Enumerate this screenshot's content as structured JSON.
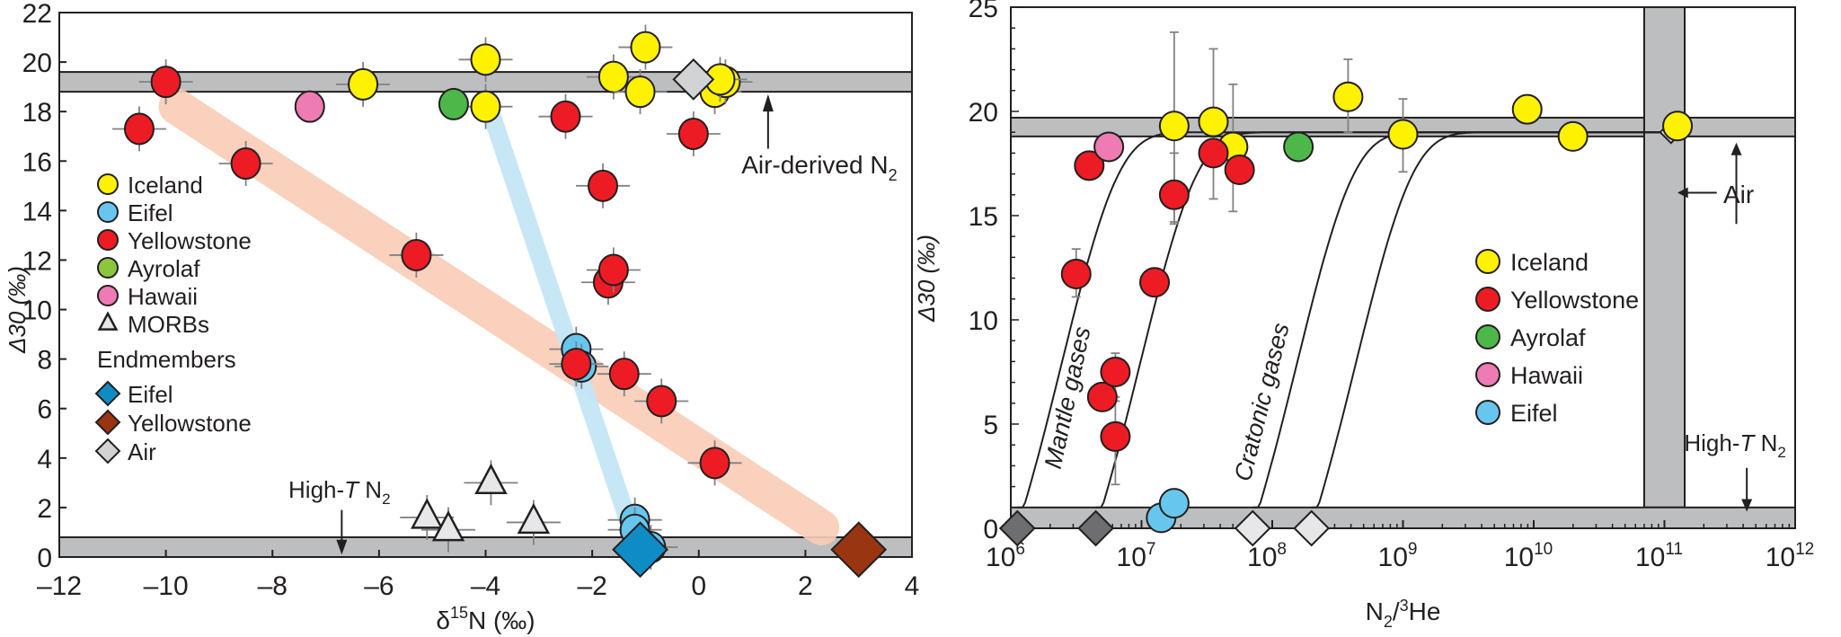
{
  "chart_data": [
    {
      "type": "scatter",
      "xlabel": "δ15N (‰)",
      "xlabel_main": "δ",
      "xlabel_sup": "15",
      "xlabel_tail": "N (‰)",
      "ylabel": "Δ30 (‰)",
      "xlim": [
        -12,
        4
      ],
      "ylim": [
        0,
        22
      ],
      "xticks": [
        -12,
        -10,
        -8,
        -6,
        -4,
        -2,
        0,
        2,
        4
      ],
      "xtick_labels": [
        "–12",
        "–10",
        "–8",
        "–6",
        "–4",
        "–2",
        "0",
        "2",
        "4"
      ],
      "yticks": [
        0,
        2,
        4,
        6,
        8,
        10,
        12,
        14,
        16,
        18,
        20,
        22
      ],
      "bands": {
        "air": [
          18.8,
          19.6
        ],
        "hight": [
          0,
          0.8
        ]
      },
      "annotations": {
        "air": "Air-derived N",
        "hight_pre": "High-",
        "hight_T": "T",
        "hight_post": " N",
        "sub2": "2"
      },
      "legend": {
        "items": [
          "Iceland",
          "Eifel",
          "Yellowstone",
          "Ayrolaf",
          "Hawaii",
          "MORBs"
        ],
        "endmembers_title": "Endmembers",
        "endmembers": [
          "Eifel",
          "Yellowstone",
          "Air"
        ]
      },
      "series": [
        {
          "name": "Iceland",
          "color": "#fff200",
          "points": [
            [
              -6.3,
              19.1
            ],
            [
              -4,
              20.1
            ],
            [
              -4,
              18.2
            ],
            [
              -1.6,
              19.4
            ],
            [
              -1,
              20.6
            ],
            [
              -1.1,
              18.8
            ],
            [
              0.3,
              18.8
            ],
            [
              0.5,
              19.2
            ],
            [
              0.4,
              19.3
            ]
          ]
        },
        {
          "name": "Eifel",
          "color": "#67c6ee",
          "points": [
            [
              -2.3,
              8.4
            ],
            [
              -2.2,
              7.7
            ],
            [
              -1.2,
              1.5
            ],
            [
              -1.2,
              1.1
            ],
            [
              -0.9,
              0.4
            ]
          ]
        },
        {
          "name": "Yellowstone",
          "color": "#ed1c24",
          "points": [
            [
              -10,
              19.2
            ],
            [
              -10.5,
              17.3
            ],
            [
              -8.5,
              15.9
            ],
            [
              -5.3,
              12.2
            ],
            [
              -2.5,
              17.8
            ],
            [
              -1.8,
              15
            ],
            [
              -1.7,
              11.1
            ],
            [
              -1.6,
              11.6
            ],
            [
              -2.3,
              7.8
            ],
            [
              -1.4,
              7.4
            ],
            [
              -0.7,
              6.3
            ],
            [
              0.3,
              3.8
            ],
            [
              -0.1,
              17.1
            ]
          ]
        },
        {
          "name": "Ayrolaf",
          "color": "#4db849",
          "points": [
            [
              -4.6,
              18.3
            ]
          ]
        },
        {
          "name": "Hawaii",
          "color": "#ee7bb3",
          "points": [
            [
              -7.3,
              18.2
            ]
          ]
        },
        {
          "name": "MORBs",
          "color": "#e6e7e8",
          "points": [
            [
              -5.1,
              1.6
            ],
            [
              -4.7,
              1.1
            ],
            [
              -3.9,
              3
            ],
            [
              -3.1,
              1.4
            ]
          ]
        }
      ],
      "endmembers": [
        {
          "name": "Eifel",
          "color": "#0f8cc4",
          "x": -1.1,
          "y": 0.3
        },
        {
          "name": "Yellowstone",
          "color": "#9a3511",
          "x": 3,
          "y": 0.3
        },
        {
          "name": "Air",
          "color": "#d1d3d4",
          "x": -0.1,
          "y": 19.3
        }
      ]
    },
    {
      "type": "scatter",
      "xlabel": "N2/3He",
      "xscale": "log",
      "ylabel": "Δ30 (‰)",
      "xlim": [
        6,
        12
      ],
      "ylim": [
        0,
        25
      ],
      "xticks": [
        6,
        7,
        8,
        9,
        10,
        11,
        12
      ],
      "xtick_base": "10",
      "xtick_exps": [
        "6",
        "7",
        "8",
        "9",
        "10",
        "11",
        "12"
      ],
      "yticks": [
        0,
        5,
        10,
        15,
        20,
        25
      ],
      "bands": {
        "air_h": [
          18.8,
          19.7
        ],
        "air_v": [
          10.9,
          11.1
        ],
        "hight": [
          0,
          1
        ]
      },
      "annotations": {
        "air": "Air",
        "hight_pre": "High-",
        "hight_T": "T",
        "hight_post": " N",
        "sub2": "2",
        "mantle": "Mantle gases",
        "cratonic": "Cratonic gases"
      },
      "legend": {
        "items": [
          "Iceland",
          "Yellowstone",
          "Ayrolaf",
          "Hawaii",
          "Eifel"
        ]
      },
      "series": [
        {
          "name": "Iceland",
          "color": "#fff200",
          "points": [
            [
              7.25,
              19.3
            ],
            [
              7.55,
              19.5
            ],
            [
              7.7,
              18.3
            ],
            [
              8.58,
              20.7
            ],
            [
              9,
              18.9
            ],
            [
              9.95,
              20.1
            ],
            [
              10.3,
              18.8
            ],
            [
              11.1,
              19.3
            ]
          ]
        },
        {
          "name": "Yellowstone",
          "color": "#ed1c24",
          "points": [
            [
              6.5,
              12.2
            ],
            [
              6.6,
              17.4
            ],
            [
              7.1,
              11.8
            ],
            [
              7.25,
              16
            ],
            [
              7.55,
              18
            ],
            [
              7.75,
              17.2
            ],
            [
              6.7,
              6.3
            ],
            [
              6.8,
              7.5
            ],
            [
              6.8,
              4.4
            ]
          ]
        },
        {
          "name": "Ayrolaf",
          "color": "#4db849",
          "points": [
            [
              8.2,
              18.3
            ]
          ]
        },
        {
          "name": "Hawaii",
          "color": "#ee7bb3",
          "points": [
            [
              6.75,
              18.3
            ]
          ]
        },
        {
          "name": "Eifel",
          "color": "#67c6ee",
          "points": [
            [
              7.15,
              0.5
            ],
            [
              7.25,
              1.2
            ]
          ]
        }
      ],
      "endmembers": [
        [
          6.05,
          0
        ],
        [
          6.65,
          0
        ],
        [
          7.85,
          0
        ],
        [
          8.3,
          0
        ],
        [
          11.05,
          19
        ]
      ],
      "mixing_curves": [
        6.05,
        6.65,
        7.85,
        8.3
      ]
    }
  ]
}
